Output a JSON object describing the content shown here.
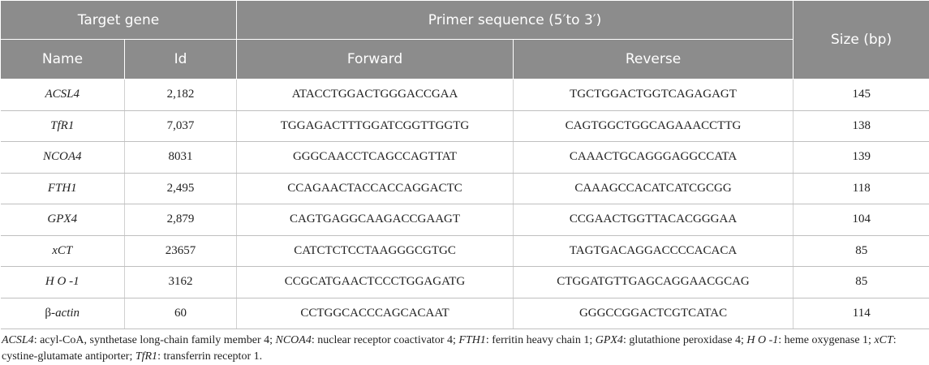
{
  "header": {
    "target_gene": "Target gene",
    "primer_sequence": "Primer sequence (5′to 3′)",
    "size": "Size (bp)",
    "name": "Name",
    "id": "Id",
    "forward": "Forward",
    "reverse": "Reverse"
  },
  "rows": [
    {
      "name": "ACSL4",
      "id": "2,182",
      "forward": "ATACCTGGACTGGGACCGAA",
      "reverse": "TGCTGGACTGGTCAGAGAGT",
      "size": "145"
    },
    {
      "name": "TfR1",
      "id": "7,037",
      "forward": "TGGAGACTTTGGATCGGTTGGTG",
      "reverse": "CAGTGGCTGGCAGAAACCTTG",
      "size": "138"
    },
    {
      "name": "NCOA4",
      "id": "8031",
      "forward": "GGGCAACCTCAGCCAGTTAT",
      "reverse": "CAAACTGCAGGGAGGCCATA",
      "size": "139"
    },
    {
      "name": "FTH1",
      "id": "2,495",
      "forward": "CCAGAACTACCACCAGGACTC",
      "reverse": "CAAAGCCACATCATCGCGG",
      "size": "118"
    },
    {
      "name": "GPX4",
      "id": "2,879",
      "forward": "CAGTGAGGCAAGACCGAAGT",
      "reverse": "CCGAACTGGTTACACGGGAA",
      "size": "104"
    },
    {
      "name": "xCT",
      "id": "23657",
      "forward": "CATCTCTCCTAAGGGCGTGC",
      "reverse": "TAGTGACAGGACCCCACACA",
      "size": "85"
    },
    {
      "name": "H O -1",
      "id": "3162",
      "forward": "CCGCATGAACTCCCTGGAGATG",
      "reverse": "CTGGATGTTGAGCAGGAACGCAG",
      "size": "85"
    },
    {
      "name_prefix": "β-",
      "name_suffix": "actin",
      "id": "60",
      "forward": "CCTGGCACCCAGCACAAT",
      "reverse": "GGGCCGGACTCGTCATAC",
      "size": "114"
    }
  ],
  "footnote": {
    "acsl4_term": "ACSL4",
    "acsl4_def": ": acyl-CoA, synthetase long-chain family member 4; ",
    "ncoa4_term": "NCOA4",
    "ncoa4_def": ": nuclear receptor coactivator 4; ",
    "fth1_term": "FTH1",
    "fth1_def": ": ferritin heavy chain 1; ",
    "gpx4_term": "GPX4",
    "gpx4_def": ": glutathione peroxidase 4; ",
    "ho1_term": "H O -1",
    "ho1_def": ": heme oxygenase 1; ",
    "xct_term": "xCT",
    "xct_def": ":",
    "xct_def2": "cystine-glutamate antiporter;  ",
    "tfr1_term": "TfR1",
    "tfr1_def": ": transferrin receptor 1."
  }
}
